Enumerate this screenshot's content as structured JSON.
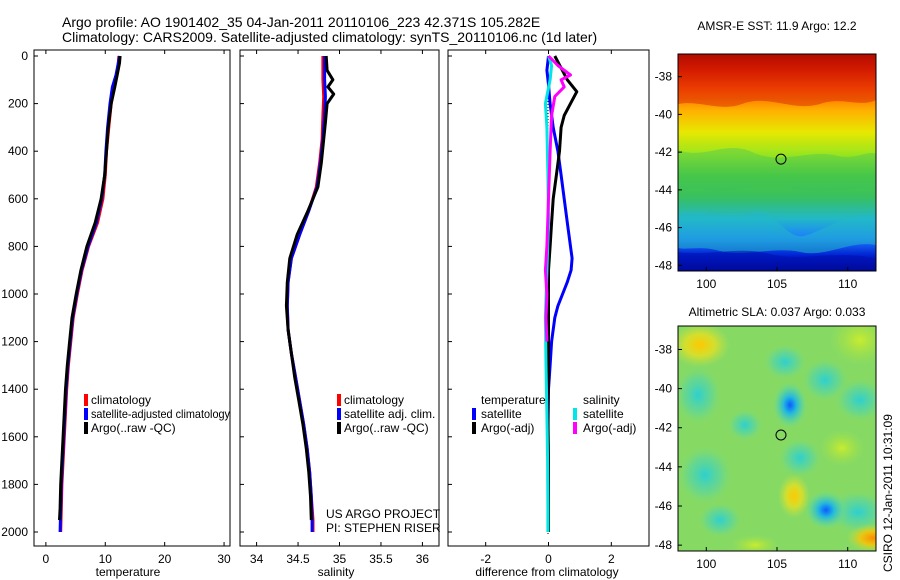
{
  "title": {
    "line1": "Argo profile: AO 1901402_35 04-Jan-2011 20110106_223 42.371S 105.282E",
    "line2": "Climatology: CARS2009. Satellite-adjusted climatology: synTS_20110106.nc (1d later)"
  },
  "project": {
    "line1": "US ARGO PROJECT",
    "line2": "PI: STEPHEN RISER"
  },
  "stamp": "CSIRO 12-Jan-2011 10:31:09",
  "colors": {
    "climatology": "#ff0000",
    "satellite": "#0000ff",
    "argo": "#000000",
    "sat_sal": "#00e5e5",
    "argo_sal": "#ff00ff"
  },
  "chart_data": [
    {
      "id": "temperature",
      "type": "line",
      "xlabel": "temperature",
      "xlim": [
        -2,
        31
      ],
      "ylim": [
        0,
        2050
      ],
      "xticks": [
        0,
        10,
        20,
        30
      ],
      "yticks": [
        0,
        200,
        400,
        600,
        800,
        1000,
        1200,
        1400,
        1600,
        1800,
        2000
      ],
      "ytick_labels": [
        "0",
        "200",
        "400",
        "600",
        "800",
        "1000",
        "1200",
        "1400",
        "1600",
        "1800",
        "2000"
      ],
      "legend": [
        "climatology",
        "satellite-adjusted climatology",
        "Argo(..raw -QC)"
      ],
      "series": [
        {
          "name": "climatology",
          "color": "#ff0000",
          "points": [
            [
              12.3,
              0
            ],
            [
              12.2,
              30
            ],
            [
              11.9,
              80
            ],
            [
              11.4,
              130
            ],
            [
              11.0,
              200
            ],
            [
              10.6,
              300
            ],
            [
              10.2,
              400
            ],
            [
              10.0,
              500
            ],
            [
              9.6,
              600
            ],
            [
              8.7,
              700
            ],
            [
              7.2,
              800
            ],
            [
              6.1,
              900
            ],
            [
              5.3,
              1000
            ],
            [
              4.6,
              1100
            ],
            [
              4.2,
              1200
            ],
            [
              3.8,
              1300
            ],
            [
              3.5,
              1400
            ],
            [
              3.3,
              1500
            ],
            [
              3.1,
              1600
            ],
            [
              2.9,
              1700
            ],
            [
              2.7,
              1800
            ],
            [
              2.6,
              1900
            ],
            [
              2.5,
              2000
            ]
          ]
        },
        {
          "name": "satellite-adjusted climatology",
          "color": "#0000ff",
          "points": [
            [
              12.4,
              0
            ],
            [
              12.2,
              30
            ],
            [
              11.8,
              80
            ],
            [
              11.2,
              130
            ],
            [
              10.8,
              200
            ],
            [
              10.4,
              300
            ],
            [
              10.1,
              400
            ],
            [
              9.9,
              500
            ],
            [
              9.4,
              600
            ],
            [
              8.5,
              700
            ],
            [
              7.1,
              800
            ],
            [
              6.0,
              900
            ],
            [
              5.2,
              1000
            ],
            [
              4.5,
              1100
            ],
            [
              4.1,
              1200
            ],
            [
              3.7,
              1300
            ],
            [
              3.4,
              1400
            ],
            [
              3.2,
              1500
            ],
            [
              3.0,
              1600
            ],
            [
              2.8,
              1700
            ],
            [
              2.6,
              1800
            ],
            [
              2.5,
              1900
            ],
            [
              2.4,
              2000
            ]
          ]
        },
        {
          "name": "Argo(..raw -QC)",
          "color": "#000000",
          "points": [
            [
              12.5,
              0
            ],
            [
              12.4,
              30
            ],
            [
              12.0,
              80
            ],
            [
              11.6,
              130
            ],
            [
              11.0,
              200
            ],
            [
              10.5,
              300
            ],
            [
              10.2,
              400
            ],
            [
              9.9,
              500
            ],
            [
              9.3,
              600
            ],
            [
              8.3,
              700
            ],
            [
              6.9,
              800
            ],
            [
              5.9,
              900
            ],
            [
              5.1,
              1000
            ],
            [
              4.4,
              1100
            ],
            [
              4.0,
              1200
            ],
            [
              3.6,
              1300
            ],
            [
              3.3,
              1400
            ],
            [
              3.1,
              1500
            ],
            [
              2.9,
              1600
            ],
            [
              2.7,
              1700
            ],
            [
              2.5,
              1800
            ],
            [
              2.4,
              1900
            ],
            [
              2.3,
              1950
            ]
          ]
        }
      ]
    },
    {
      "id": "salinity",
      "type": "line",
      "xlabel": "salinity",
      "xlim": [
        33.8,
        36.2
      ],
      "ylim": [
        0,
        2050
      ],
      "xticks": [
        34,
        34.5,
        35,
        35.5,
        36
      ],
      "legend": [
        "climatology",
        "satellite adj. clim.",
        "Argo(..raw -QC)"
      ],
      "series": [
        {
          "name": "climatology",
          "color": "#ff0000",
          "points": [
            [
              34.8,
              0
            ],
            [
              34.8,
              50
            ],
            [
              34.8,
              100
            ],
            [
              34.81,
              170
            ],
            [
              34.8,
              250
            ],
            [
              34.79,
              350
            ],
            [
              34.76,
              450
            ],
            [
              34.72,
              550
            ],
            [
              34.63,
              650
            ],
            [
              34.52,
              750
            ],
            [
              34.42,
              850
            ],
            [
              34.38,
              950
            ],
            [
              34.37,
              1050
            ],
            [
              34.38,
              1150
            ],
            [
              34.42,
              1250
            ],
            [
              34.47,
              1350
            ],
            [
              34.52,
              1450
            ],
            [
              34.57,
              1550
            ],
            [
              34.61,
              1650
            ],
            [
              34.64,
              1750
            ],
            [
              34.66,
              1850
            ],
            [
              34.68,
              1950
            ],
            [
              34.68,
              2000
            ]
          ]
        },
        {
          "name": "satellite adj. clim.",
          "color": "#0000ff",
          "points": [
            [
              34.82,
              0
            ],
            [
              34.82,
              50
            ],
            [
              34.82,
              100
            ],
            [
              34.83,
              170
            ],
            [
              34.82,
              250
            ],
            [
              34.8,
              350
            ],
            [
              34.77,
              450
            ],
            [
              34.73,
              550
            ],
            [
              34.63,
              650
            ],
            [
              34.52,
              750
            ],
            [
              34.42,
              850
            ],
            [
              34.38,
              950
            ],
            [
              34.37,
              1050
            ],
            [
              34.38,
              1150
            ],
            [
              34.42,
              1250
            ],
            [
              34.47,
              1350
            ],
            [
              34.52,
              1450
            ],
            [
              34.57,
              1550
            ],
            [
              34.61,
              1650
            ],
            [
              34.64,
              1750
            ],
            [
              34.66,
              1850
            ],
            [
              34.67,
              1950
            ],
            [
              34.67,
              2000
            ]
          ]
        },
        {
          "name": "Argo(..raw -QC)",
          "color": "#000000",
          "points": [
            [
              34.84,
              0
            ],
            [
              34.85,
              60
            ],
            [
              34.92,
              100
            ],
            [
              34.86,
              130
            ],
            [
              34.93,
              160
            ],
            [
              34.85,
              200
            ],
            [
              34.83,
              280
            ],
            [
              34.81,
              350
            ],
            [
              34.78,
              450
            ],
            [
              34.74,
              550
            ],
            [
              34.62,
              650
            ],
            [
              34.49,
              750
            ],
            [
              34.4,
              850
            ],
            [
              34.37,
              950
            ],
            [
              34.36,
              1050
            ],
            [
              34.38,
              1150
            ],
            [
              34.42,
              1250
            ],
            [
              34.46,
              1350
            ],
            [
              34.51,
              1450
            ],
            [
              34.56,
              1550
            ],
            [
              34.6,
              1650
            ],
            [
              34.63,
              1750
            ],
            [
              34.65,
              1850
            ],
            [
              34.66,
              1950
            ]
          ]
        }
      ]
    },
    {
      "id": "difference",
      "type": "line",
      "xlabel": "difference from climatology",
      "xlim": [
        -3.2,
        3.2
      ],
      "ylim": [
        0,
        2050
      ],
      "xticks": [
        -2,
        0,
        2
      ],
      "legend_left_heading": "temperature",
      "legend_right_heading": "salinity",
      "legend": [
        "satellite",
        "Argo(-adj)",
        "satellite",
        "Argo(-adj)"
      ],
      "series": [
        {
          "name": "temperature satellite",
          "color": "#0000ff",
          "points": [
            [
              0.0,
              0
            ],
            [
              -0.05,
              60
            ],
            [
              0.0,
              120
            ],
            [
              0.05,
              200
            ],
            [
              0.15,
              300
            ],
            [
              0.3,
              400
            ],
            [
              0.4,
              500
            ],
            [
              0.5,
              600
            ],
            [
              0.6,
              700
            ],
            [
              0.7,
              800
            ],
            [
              0.75,
              850
            ],
            [
              0.72,
              900
            ],
            [
              0.6,
              950
            ],
            [
              0.45,
              1000
            ],
            [
              0.3,
              1050
            ],
            [
              0.2,
              1100
            ],
            [
              0.1,
              1200
            ],
            [
              0.05,
              1300
            ],
            [
              0.0,
              1400
            ],
            [
              -0.02,
              1600
            ],
            [
              0.0,
              1800
            ],
            [
              0.0,
              2000
            ]
          ]
        },
        {
          "name": "temperature Argo(-adj)",
          "color": "#000000",
          "points": [
            [
              0.2,
              0
            ],
            [
              0.4,
              50
            ],
            [
              0.6,
              100
            ],
            [
              0.9,
              150
            ],
            [
              0.7,
              200
            ],
            [
              0.5,
              250
            ],
            [
              0.4,
              300
            ],
            [
              0.35,
              400
            ],
            [
              0.25,
              500
            ],
            [
              0.15,
              600
            ],
            [
              0.1,
              700
            ],
            [
              0.05,
              800
            ],
            [
              0.0,
              900
            ],
            [
              0.0,
              1100
            ],
            [
              0.0,
              1300
            ],
            [
              -0.02,
              1500
            ],
            [
              0.0,
              1700
            ],
            [
              0.0,
              1900
            ],
            [
              0.0,
              2000
            ]
          ]
        },
        {
          "name": "salinity satellite",
          "color": "#00e5e5",
          "points": [
            [
              0.0,
              0
            ],
            [
              0.1,
              40
            ],
            [
              0.05,
              100
            ],
            [
              -0.1,
              200
            ],
            [
              -0.05,
              300
            ],
            [
              -0.02,
              500
            ],
            [
              0.0,
              700
            ],
            [
              -0.05,
              900
            ],
            [
              -0.1,
              1100
            ],
            [
              -0.08,
              1300
            ],
            [
              -0.05,
              1500
            ],
            [
              -0.03,
              1700
            ],
            [
              -0.02,
              1900
            ],
            [
              -0.02,
              2000
            ]
          ]
        },
        {
          "name": "salinity Argo(-adj)",
          "color": "#ff00ff",
          "points": [
            [
              0.0,
              0
            ],
            [
              0.3,
              40
            ],
            [
              0.7,
              80
            ],
            [
              0.4,
              100
            ],
            [
              0.5,
              130
            ],
            [
              0.2,
              170
            ],
            [
              0.1,
              250
            ],
            [
              0.05,
              400
            ],
            [
              0.0,
              600
            ],
            [
              -0.05,
              800
            ],
            [
              -0.1,
              900
            ],
            [
              -0.05,
              1000
            ],
            [
              -0.08,
              1100
            ],
            [
              -0.05,
              1200
            ]
          ]
        }
      ]
    },
    {
      "id": "sst_map",
      "type": "heatmap",
      "title": "AMSR-E SST: 11.9 Argo: 12.2",
      "xlim": [
        98,
        112
      ],
      "ylim": [
        -48.3,
        -36.8
      ],
      "xticks": [
        100,
        105,
        110
      ],
      "yticks": [
        -38,
        -40,
        -42,
        -44,
        -46,
        -48
      ],
      "marker": {
        "lon": 105.282,
        "lat": -42.371
      }
    },
    {
      "id": "sla_map",
      "type": "heatmap",
      "title": "Altimetric SLA: 0.037 Argo: 0.033",
      "xlim": [
        98,
        112
      ],
      "ylim": [
        -48.3,
        -36.8
      ],
      "xticks": [
        100,
        105,
        110
      ],
      "yticks": [
        -38,
        -40,
        -42,
        -44,
        -46,
        -48
      ],
      "marker": {
        "lon": 105.282,
        "lat": -42.371
      }
    }
  ]
}
